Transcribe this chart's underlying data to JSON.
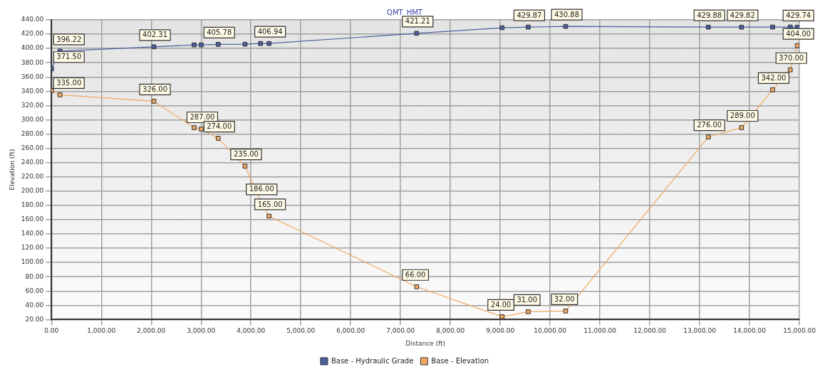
{
  "chart_data": {
    "type": "line",
    "title": "QMT_HMT",
    "xlabel": "Distance (ft)",
    "ylabel": "Elevation (ft)",
    "xlim": [
      0,
      15000
    ],
    "ylim": [
      20,
      440
    ],
    "xticks": [
      {
        "value": 0,
        "label": "0.00"
      },
      {
        "value": 1000,
        "label": "1,000.00"
      },
      {
        "value": 2000,
        "label": "2,000.00"
      },
      {
        "value": 3000,
        "label": "3,000.00"
      },
      {
        "value": 4000,
        "label": "4,000.00"
      },
      {
        "value": 5000,
        "label": "5,000.00"
      },
      {
        "value": 6000,
        "label": "6,000.00"
      },
      {
        "value": 7000,
        "label": "7,000.00"
      },
      {
        "value": 8000,
        "label": "8,000.00"
      },
      {
        "value": 9000,
        "label": "9,000.00"
      },
      {
        "value": 10000,
        "label": "10,000.00"
      },
      {
        "value": 11000,
        "label": "11,000.00"
      },
      {
        "value": 12000,
        "label": "12,000.00"
      },
      {
        "value": 13000,
        "label": "13,000.00"
      },
      {
        "value": 14000,
        "label": "14,000.00"
      },
      {
        "value": 15000,
        "label": "15,000.00"
      }
    ],
    "yticks": [
      {
        "value": 20,
        "label": "20.00"
      },
      {
        "value": 40,
        "label": "40.00"
      },
      {
        "value": 60,
        "label": "60.00"
      },
      {
        "value": 80,
        "label": "80.00"
      },
      {
        "value": 100,
        "label": "100.00"
      },
      {
        "value": 120,
        "label": "120.00"
      },
      {
        "value": 140,
        "label": "140.00"
      },
      {
        "value": 160,
        "label": "160.00"
      },
      {
        "value": 180,
        "label": "180.00"
      },
      {
        "value": 200,
        "label": "200.00"
      },
      {
        "value": 220,
        "label": "220.00"
      },
      {
        "value": 240,
        "label": "240.00"
      },
      {
        "value": 260,
        "label": "260.00"
      },
      {
        "value": 280,
        "label": "280.00"
      },
      {
        "value": 300,
        "label": "300.00"
      },
      {
        "value": 320,
        "label": "320.00"
      },
      {
        "value": 340,
        "label": "340.00"
      },
      {
        "value": 360,
        "label": "360.00"
      },
      {
        "value": 380,
        "label": "380.00"
      },
      {
        "value": 400,
        "label": "400.00"
      },
      {
        "value": 420,
        "label": "420.00"
      },
      {
        "value": 440,
        "label": "440.00"
      }
    ],
    "grid": true,
    "legend": "bottom",
    "marker": "square",
    "line_style": "solid",
    "series": [
      {
        "name": "Base - Hydraulic Grade",
        "color": "#4a5f9e",
        "x": [
          0,
          170,
          2054,
          2861,
          3003,
          3343,
          3881,
          4193,
          4363,
          7323,
          9037,
          9561,
          10312,
          13173,
          13839,
          14462,
          14816,
          14958
        ],
        "values": [
          371.5,
          396.22,
          402.31,
          405,
          405,
          405.78,
          406,
          407,
          406.94,
          421.21,
          429,
          429.87,
          430.88,
          429.88,
          429.82,
          430,
          430,
          429.74
        ],
        "value_labels": [
          "371.50",
          "396.22",
          "402.31",
          null,
          null,
          "405.78",
          null,
          null,
          "406.94",
          "421.21",
          null,
          "429.87",
          "430.88",
          "429.88",
          "429.82",
          null,
          null,
          "429.74"
        ]
      },
      {
        "name": "Base - Elevation",
        "color": "#f0a860",
        "x": [
          0,
          170,
          2054,
          2861,
          3003,
          3343,
          3881,
          4193,
          4363,
          7323,
          9037,
          9561,
          10312,
          13173,
          13839,
          14462,
          14816,
          14958
        ],
        "values": [
          341,
          335,
          326,
          289,
          287,
          274,
          235,
          186,
          165,
          66,
          24,
          31,
          32,
          276,
          289,
          342,
          370,
          404
        ],
        "value_labels": [
          null,
          "335.00",
          "326.00",
          null,
          "287.00",
          "274.00",
          "235.00",
          "186.00",
          "165.00",
          "66.00",
          "24.00",
          "31.00",
          "32.00",
          "276.00",
          "289.00",
          "342.00",
          "370.00",
          "404.00"
        ]
      }
    ]
  }
}
